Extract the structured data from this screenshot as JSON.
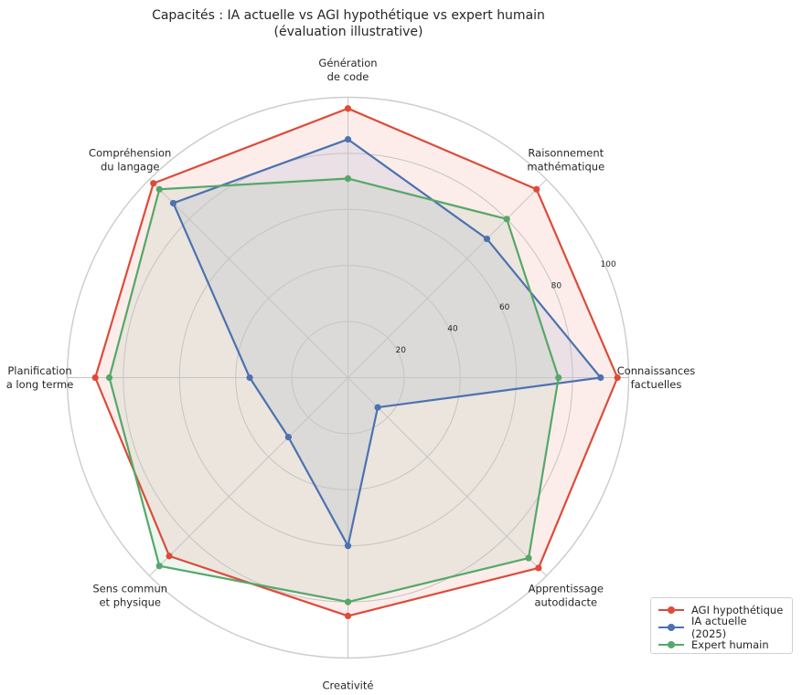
{
  "chart_data": {
    "type": "radar",
    "title": [
      "Capacités : IA actuelle vs AGI hypothétique vs expert humain",
      "(évaluation illustrative)"
    ],
    "axes": [
      [
        "Connaissances",
        "factuelles"
      ],
      [
        "Raisonnement",
        "mathématique"
      ],
      [
        "Génération",
        "de code"
      ],
      [
        "Compréhension",
        "du langage"
      ],
      [
        "Planification",
        "a long terme"
      ],
      [
        "Sens commun",
        "et physique"
      ],
      [
        "Creativité"
      ],
      [
        "Apprentissage",
        "autodidacte"
      ]
    ],
    "r_ticks": [
      20,
      40,
      60,
      80,
      100
    ],
    "r_range": [
      0,
      100
    ],
    "grid": true,
    "legend_position": "bottom-right",
    "series": [
      {
        "name": "AGI hypothétique",
        "color": "#dd4b39",
        "values": [
          96,
          95,
          96,
          98,
          90,
          90,
          85,
          96
        ]
      },
      {
        "name": "IA actuelle (2025)",
        "color": "#4c72b0",
        "values": [
          90,
          70,
          85,
          88,
          35,
          30,
          60,
          15
        ]
      },
      {
        "name": "Expert humain",
        "color": "#55a868",
        "values": [
          75,
          80,
          71,
          95,
          85,
          95,
          80,
          91
        ]
      }
    ]
  }
}
